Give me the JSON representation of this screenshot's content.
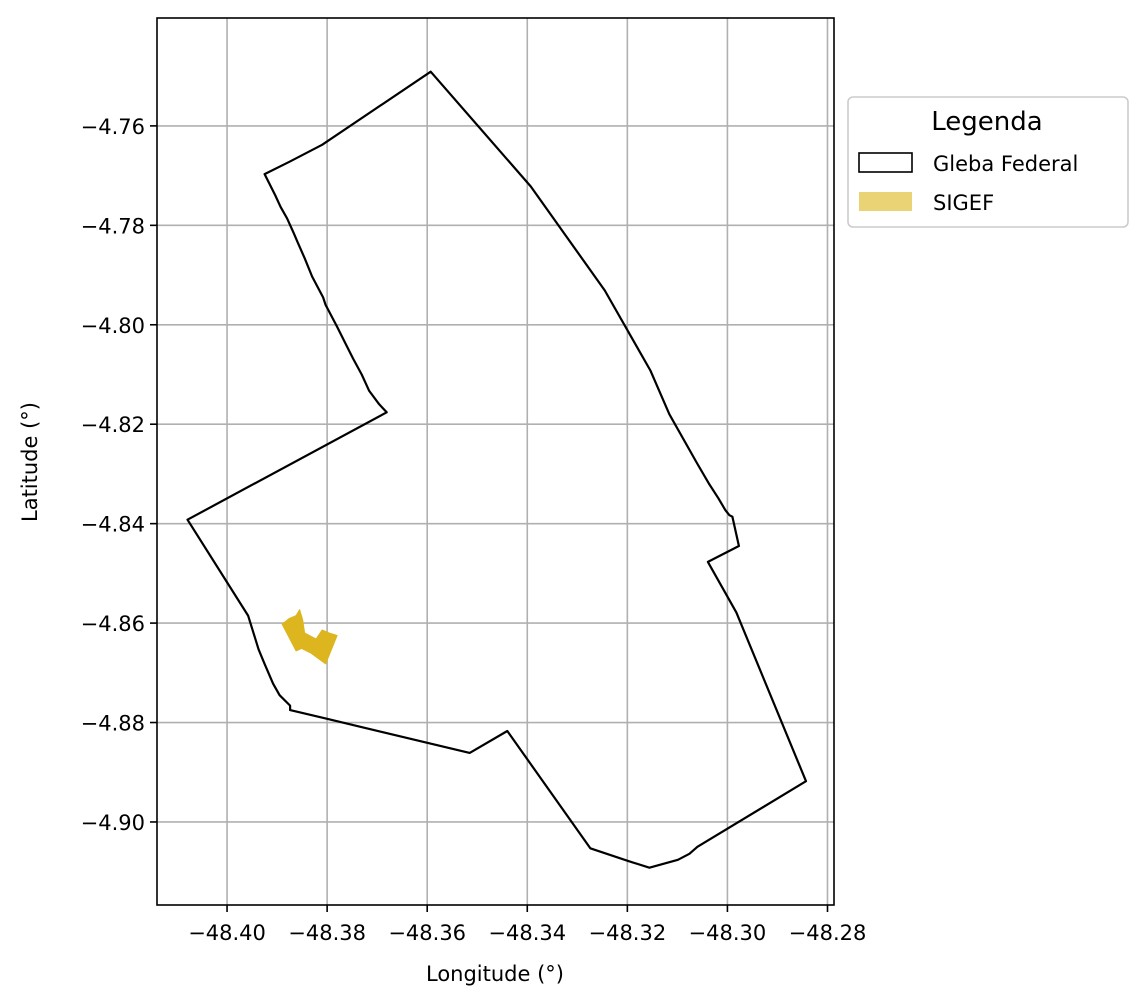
{
  "chart_data": {
    "type": "map",
    "xlabel": "Longitude (°)",
    "ylabel": "Latitude (°)",
    "xlim": [
      -48.414,
      -48.2787
    ],
    "ylim": [
      -4.9167,
      -4.7383
    ],
    "xticks": [
      -48.4,
      -48.38,
      -48.36,
      -48.34,
      -48.32,
      -48.3,
      -48.28
    ],
    "xtick_labels": [
      "−48.40",
      "−48.38",
      "−48.36",
      "−48.34",
      "−48.32",
      "−48.30",
      "−48.28"
    ],
    "yticks": [
      -4.76,
      -4.78,
      -4.8,
      -4.82,
      -4.84,
      -4.86,
      -4.88,
      -4.9
    ],
    "ytick_labels": [
      "−4.76",
      "−4.78",
      "−4.80",
      "−4.82",
      "−4.84",
      "−4.86",
      "−4.88",
      "−4.90"
    ],
    "grid": true,
    "legend": {
      "title": "Legenda",
      "placement": "outside-upper-right",
      "entries": [
        {
          "label": "Gleba Federal",
          "style": "outline",
          "edge": "#000000",
          "fill": "#ffffff"
        },
        {
          "label": "SIGEF",
          "style": "filled",
          "fill": "#e9d375"
        }
      ]
    },
    "layers": [
      {
        "name": "Gleba Federal",
        "kind": "polygon-outline",
        "color": "#000000",
        "coords": [
          [
            -48.3593,
            -4.7491
          ],
          [
            -48.3393,
            -4.7722
          ],
          [
            -48.3245,
            -4.7931
          ],
          [
            -48.3154,
            -4.8092
          ],
          [
            -48.3116,
            -4.818
          ],
          [
            -48.3061,
            -4.8278
          ],
          [
            -48.3036,
            -4.8321
          ],
          [
            -48.3018,
            -4.8349
          ],
          [
            -48.3004,
            -4.8373
          ],
          [
            -48.2996,
            -4.8383
          ],
          [
            -48.299,
            -4.8386
          ],
          [
            -48.2977,
            -4.8445
          ],
          [
            -48.3039,
            -4.8477
          ],
          [
            -48.2982,
            -4.8579
          ],
          [
            -48.2843,
            -4.8918
          ],
          [
            -48.306,
            -4.905
          ],
          [
            -48.3076,
            -4.9064
          ],
          [
            -48.3099,
            -4.9076
          ],
          [
            -48.3156,
            -4.9092
          ],
          [
            -48.3197,
            -4.9079
          ],
          [
            -48.3274,
            -4.9053
          ],
          [
            -48.344,
            -4.8817
          ],
          [
            -48.3515,
            -4.8861
          ],
          [
            -48.3802,
            -4.8792
          ],
          [
            -48.3874,
            -4.8775
          ],
          [
            -48.3874,
            -4.8766
          ],
          [
            -48.3895,
            -4.8745
          ],
          [
            -48.3908,
            -4.8722
          ],
          [
            -48.3925,
            -4.8682
          ],
          [
            -48.3937,
            -4.8653
          ],
          [
            -48.3958,
            -4.8585
          ],
          [
            -48.4079,
            -4.8392
          ],
          [
            -48.3681,
            -4.8176
          ],
          [
            -48.3696,
            -4.816
          ],
          [
            -48.3716,
            -4.8133
          ],
          [
            -48.3731,
            -4.81
          ],
          [
            -48.3748,
            -4.8068
          ],
          [
            -48.3763,
            -4.8038
          ],
          [
            -48.378,
            -4.8004
          ],
          [
            -48.3803,
            -4.796
          ],
          [
            -48.3808,
            -4.7945
          ],
          [
            -48.383,
            -4.7903
          ],
          [
            -48.3845,
            -4.7866
          ],
          [
            -48.3859,
            -4.7834
          ],
          [
            -48.3867,
            -4.7815
          ],
          [
            -48.388,
            -4.7786
          ],
          [
            -48.3893,
            -4.7763
          ],
          [
            -48.3904,
            -4.7739
          ],
          [
            -48.3925,
            -4.7697
          ],
          [
            -48.3875,
            -4.7672
          ],
          [
            -48.381,
            -4.7638
          ],
          [
            -48.3593,
            -4.7491
          ]
        ]
      },
      {
        "name": "SIGEF",
        "kind": "polygon-filled",
        "color": "#ddb51f",
        "coords": [
          [
            -48.389,
            -4.8602
          ],
          [
            -48.3876,
            -4.8591
          ],
          [
            -48.3862,
            -4.8585
          ],
          [
            -48.3855,
            -4.8573
          ],
          [
            -48.3849,
            -4.8593
          ],
          [
            -48.3845,
            -4.862
          ],
          [
            -48.3822,
            -4.8632
          ],
          [
            -48.381,
            -4.8614
          ],
          [
            -48.3796,
            -4.862
          ],
          [
            -48.378,
            -4.8625
          ],
          [
            -48.3803,
            -4.8682
          ],
          [
            -48.3833,
            -4.866
          ],
          [
            -48.3851,
            -4.8651
          ],
          [
            -48.3862,
            -4.8656
          ],
          [
            -48.389,
            -4.8602
          ]
        ]
      }
    ]
  }
}
